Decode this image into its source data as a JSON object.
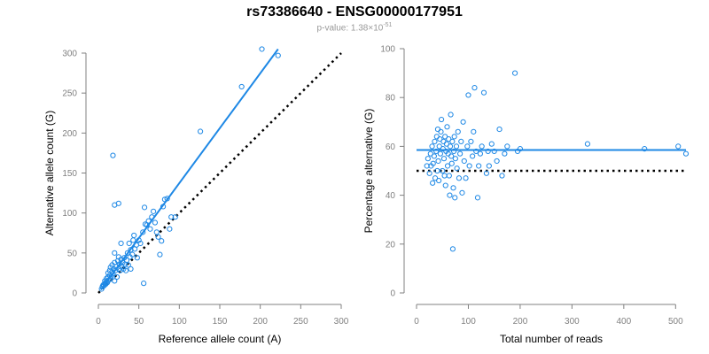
{
  "figure": {
    "title": "rs73386640 - ENSG00000177951",
    "pvalue_prefix": "p-value: 1.38×10",
    "pvalue_exponent": "-51"
  },
  "colors": {
    "accent": "#1e88e5",
    "reference": "#000000",
    "axis": "#808080"
  },
  "chart_data": [
    {
      "type": "scatter",
      "xlabel": "Reference allele count (A)",
      "ylabel": "Alternative allele count (G)",
      "xlim": [
        0,
        300
      ],
      "ylim": [
        0,
        300
      ],
      "xticks": [
        0,
        50,
        100,
        150,
        200,
        250,
        300
      ],
      "yticks": [
        0,
        50,
        100,
        150,
        200,
        250,
        300
      ],
      "fit_line": {
        "x": [
          3,
          222
        ],
        "y": [
          4,
          305
        ]
      },
      "reference_line": {
        "x": [
          0,
          300
        ],
        "y": [
          0,
          300
        ]
      },
      "points": [
        [
          4,
          5
        ],
        [
          5,
          8
        ],
        [
          6,
          10
        ],
        [
          7,
          9
        ],
        [
          8,
          12
        ],
        [
          8,
          15
        ],
        [
          9,
          11
        ],
        [
          10,
          14
        ],
        [
          10,
          18
        ],
        [
          11,
          13
        ],
        [
          12,
          20
        ],
        [
          12,
          25
        ],
        [
          13,
          16
        ],
        [
          14,
          22
        ],
        [
          14,
          28
        ],
        [
          15,
          18
        ],
        [
          15,
          32
        ],
        [
          16,
          21
        ],
        [
          17,
          26
        ],
        [
          17,
          35
        ],
        [
          18,
          24
        ],
        [
          19,
          30
        ],
        [
          20,
          15
        ],
        [
          20,
          38
        ],
        [
          20,
          50
        ],
        [
          21,
          28
        ],
        [
          22,
          33
        ],
        [
          23,
          20
        ],
        [
          24,
          40
        ],
        [
          25,
          30
        ],
        [
          25,
          45
        ],
        [
          26,
          36
        ],
        [
          27,
          28
        ],
        [
          28,
          42
        ],
        [
          28,
          62
        ],
        [
          29,
          33
        ],
        [
          30,
          38
        ],
        [
          31,
          30
        ],
        [
          32,
          44
        ],
        [
          33,
          36
        ],
        [
          34,
          28
        ],
        [
          35,
          41
        ],
        [
          36,
          50
        ],
        [
          37,
          35
        ],
        [
          38,
          62
        ],
        [
          39,
          45
        ],
        [
          40,
          30
        ],
        [
          40,
          54
        ],
        [
          42,
          48
        ],
        [
          43,
          66
        ],
        [
          44,
          72
        ],
        [
          45,
          55
        ],
        [
          47,
          60
        ],
        [
          48,
          44
        ],
        [
          50,
          66
        ],
        [
          52,
          62
        ],
        [
          55,
          76
        ],
        [
          56,
          12
        ],
        [
          57,
          107
        ],
        [
          58,
          86
        ],
        [
          60,
          85
        ],
        [
          62,
          90
        ],
        [
          64,
          80
        ],
        [
          66,
          95
        ],
        [
          68,
          102
        ],
        [
          70,
          88
        ],
        [
          72,
          76
        ],
        [
          74,
          70
        ],
        [
          76,
          48
        ],
        [
          78,
          65
        ],
        [
          80,
          108
        ],
        [
          82,
          117
        ],
        [
          85,
          118
        ],
        [
          88,
          80
        ],
        [
          90,
          95
        ],
        [
          95,
          95
        ],
        [
          18,
          172
        ],
        [
          20,
          110
        ],
        [
          25,
          112
        ],
        [
          126,
          202
        ],
        [
          177,
          258
        ],
        [
          202,
          305
        ],
        [
          222,
          297
        ]
      ]
    },
    {
      "type": "scatter",
      "xlabel": "Total number of reads",
      "ylabel": "Percentage alternative (G)",
      "xlim": [
        0,
        520
      ],
      "ylim": [
        0,
        100
      ],
      "xticks": [
        0,
        100,
        200,
        300,
        400,
        500
      ],
      "yticks": [
        0,
        20,
        40,
        60,
        80,
        100
      ],
      "fit_line": {
        "x": [
          0,
          520
        ],
        "y": [
          58.5,
          58.5
        ]
      },
      "reference_line": {
        "x": [
          0,
          520
        ],
        "y": [
          50,
          50
        ]
      },
      "points": [
        [
          20,
          52
        ],
        [
          22,
          55
        ],
        [
          25,
          49
        ],
        [
          27,
          57
        ],
        [
          28,
          52
        ],
        [
          30,
          60
        ],
        [
          31,
          45
        ],
        [
          32,
          53
        ],
        [
          34,
          56
        ],
        [
          35,
          62
        ],
        [
          36,
          47
        ],
        [
          38,
          58
        ],
        [
          39,
          64
        ],
        [
          40,
          50
        ],
        [
          41,
          67
        ],
        [
          42,
          54
        ],
        [
          43,
          46
        ],
        [
          44,
          60
        ],
        [
          45,
          63
        ],
        [
          46,
          57
        ],
        [
          47,
          66
        ],
        [
          48,
          71
        ],
        [
          50,
          50
        ],
        [
          51,
          59
        ],
        [
          52,
          62
        ],
        [
          53,
          55
        ],
        [
          54,
          48
        ],
        [
          55,
          64
        ],
        [
          56,
          44
        ],
        [
          57,
          58
        ],
        [
          58,
          61
        ],
        [
          59,
          68
        ],
        [
          60,
          52
        ],
        [
          61,
          57
        ],
        [
          62,
          63
        ],
        [
          63,
          48
        ],
        [
          64,
          40
        ],
        [
          65,
          60
        ],
        [
          66,
          73
        ],
        [
          67,
          56
        ],
        [
          68,
          53
        ],
        [
          69,
          62
        ],
        [
          70,
          18
        ],
        [
          71,
          43
        ],
        [
          72,
          58
        ],
        [
          73,
          64
        ],
        [
          74,
          39
        ],
        [
          75,
          55
        ],
        [
          77,
          60
        ],
        [
          78,
          51
        ],
        [
          80,
          66
        ],
        [
          82,
          47
        ],
        [
          84,
          57
        ],
        [
          86,
          62
        ],
        [
          88,
          41
        ],
        [
          90,
          70
        ],
        [
          92,
          54
        ],
        [
          95,
          47
        ],
        [
          98,
          60
        ],
        [
          100,
          81
        ],
        [
          102,
          52
        ],
        [
          105,
          62
        ],
        [
          108,
          56
        ],
        [
          110,
          66
        ],
        [
          112,
          84
        ],
        [
          115,
          58
        ],
        [
          118,
          39
        ],
        [
          120,
          52
        ],
        [
          123,
          57
        ],
        [
          126,
          60
        ],
        [
          130,
          82
        ],
        [
          135,
          49
        ],
        [
          138,
          58
        ],
        [
          140,
          52
        ],
        [
          145,
          61
        ],
        [
          150,
          58
        ],
        [
          155,
          54
        ],
        [
          160,
          67
        ],
        [
          165,
          48
        ],
        [
          170,
          57
        ],
        [
          175,
          60
        ],
        [
          190,
          90
        ],
        [
          195,
          58
        ],
        [
          200,
          59
        ],
        [
          330,
          61
        ],
        [
          440,
          59
        ],
        [
          505,
          60
        ],
        [
          520,
          57
        ]
      ]
    }
  ]
}
